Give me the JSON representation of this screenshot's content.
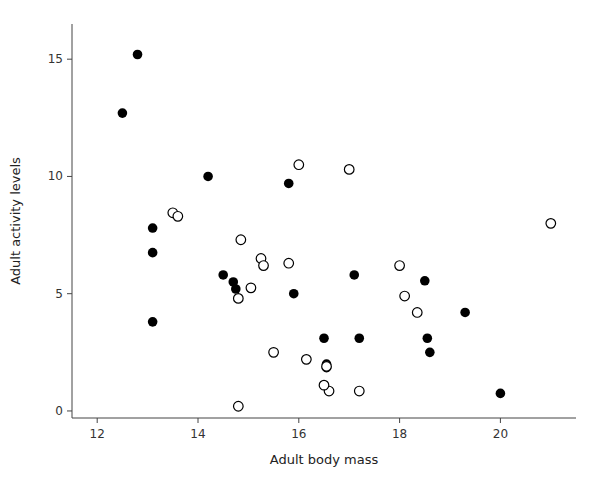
{
  "chart_data": {
    "type": "scatter",
    "xlabel": "Adult body mass",
    "ylabel": "Adult activity levels",
    "xlim": [
      11.5,
      21.5
    ],
    "ylim": [
      -0.3,
      16.5
    ],
    "xticks": [
      12,
      14,
      16,
      18,
      20
    ],
    "yticks": [
      0,
      5,
      10,
      15
    ],
    "grid": false,
    "series": [
      {
        "color": "#000000",
        "marker": "filled-circle",
        "x": [
          12.5,
          12.8,
          13.1,
          13.1,
          13.1,
          14.2,
          14.5,
          14.7,
          14.75,
          15.8,
          15.9,
          16.5,
          16.55,
          16.55,
          17.1,
          17.2,
          18.5,
          18.55,
          18.6,
          19.3,
          20.0
        ],
        "values": [
          12.7,
          15.2,
          7.8,
          6.75,
          3.8,
          10.0,
          5.8,
          5.5,
          5.2,
          9.7,
          5.0,
          3.1,
          2.0,
          1.85,
          5.8,
          3.1,
          5.55,
          3.1,
          2.5,
          4.2,
          0.75
        ]
      },
      {
        "color": "#000000",
        "marker": "open-circle",
        "x": [
          13.5,
          13.6,
          14.8,
          14.85,
          15.05,
          15.25,
          15.3,
          15.5,
          15.8,
          16.0,
          16.15,
          16.55,
          16.6,
          17.2,
          18.0,
          18.1,
          18.35,
          21.0,
          14.8,
          16.5,
          17.0
        ],
        "values": [
          8.45,
          8.3,
          4.8,
          7.3,
          5.25,
          6.5,
          6.2,
          2.5,
          6.3,
          10.5,
          2.2,
          1.9,
          0.85,
          0.85,
          6.2,
          4.9,
          4.2,
          8.0,
          0.2,
          1.1,
          10.3
        ]
      }
    ]
  }
}
